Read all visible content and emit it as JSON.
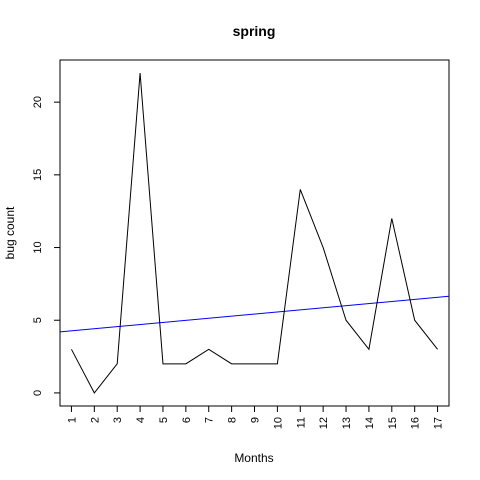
{
  "chart_data": {
    "type": "line",
    "title": "spring",
    "xlabel": "Months",
    "ylabel": "bug count",
    "x": [
      1,
      2,
      3,
      4,
      5,
      6,
      7,
      8,
      9,
      10,
      11,
      12,
      13,
      14,
      15,
      16,
      17
    ],
    "x_tick_labels": [
      "1",
      "2",
      "3",
      "4",
      "5",
      "6",
      "7",
      "8",
      "9",
      "10",
      "11",
      "12",
      "13",
      "14",
      "15",
      "16",
      "17"
    ],
    "y_ticks": [
      0,
      5,
      10,
      15,
      20
    ],
    "y_tick_labels": [
      "0",
      "5",
      "10",
      "15",
      "20"
    ],
    "xlim": [
      0.5,
      17.5
    ],
    "ylim": [
      -0.9,
      22.9
    ],
    "grid": false,
    "series": [
      {
        "values": [
          3,
          0,
          2,
          22,
          2,
          2,
          3,
          2,
          2,
          2,
          14,
          10,
          5,
          3,
          12,
          5,
          3
        ],
        "color": "#000000"
      }
    ],
    "trend_line": {
      "color": "#0000ff",
      "points": [
        [
          0.5,
          4.2
        ],
        [
          17.5,
          6.65
        ]
      ]
    }
  }
}
